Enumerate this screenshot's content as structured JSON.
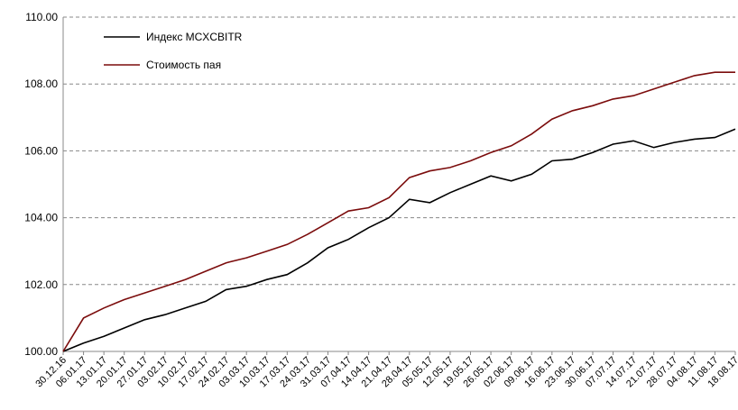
{
  "chart_data": {
    "type": "line",
    "categories": [
      "30.12.16",
      "06.01.17",
      "13.01.17",
      "20.01.17",
      "27.01.17",
      "03.02.17",
      "10.02.17",
      "17.02.17",
      "24.02.17",
      "03.03.17",
      "10.03.17",
      "17.03.17",
      "24.03.17",
      "31.03.17",
      "07.04.17",
      "14.04.17",
      "21.04.17",
      "28.04.17",
      "05.05.17",
      "12.05.17",
      "19.05.17",
      "26.05.17",
      "02.06.17",
      "09.06.17",
      "16.06.17",
      "23.06.17",
      "30.06.17",
      "07.07.17",
      "14.07.17",
      "21.07.17",
      "28.07.17",
      "04.08.17",
      "11.08.17",
      "18.08.17"
    ],
    "series": [
      {
        "name": "Индекс MCXCBITR",
        "color": "#000000",
        "values": [
          100.0,
          100.25,
          100.45,
          100.7,
          100.95,
          101.1,
          101.3,
          101.5,
          101.85,
          101.95,
          102.15,
          102.3,
          102.65,
          103.1,
          103.35,
          103.7,
          104.0,
          104.55,
          104.45,
          104.75,
          105.0,
          105.25,
          105.1,
          105.3,
          105.7,
          105.75,
          105.95,
          106.2,
          106.3,
          106.1,
          106.25,
          106.35,
          106.4,
          106.65
        ]
      },
      {
        "name": "Стоимость пая",
        "color": "#7b0c0c",
        "values": [
          100.0,
          101.0,
          101.3,
          101.55,
          101.75,
          101.95,
          102.15,
          102.4,
          102.65,
          102.8,
          103.0,
          103.2,
          103.5,
          103.85,
          104.2,
          104.3,
          104.6,
          105.2,
          105.4,
          105.5,
          105.7,
          105.95,
          106.15,
          106.5,
          106.95,
          107.2,
          107.35,
          107.55,
          107.65,
          107.85,
          108.05,
          108.25,
          108.35,
          108.35
        ]
      }
    ],
    "ylim": [
      100,
      110
    ],
    "yticks": [
      {
        "value": 100,
        "label": "100.00"
      },
      {
        "value": 102,
        "label": "102.00"
      },
      {
        "value": 104,
        "label": "104.00"
      },
      {
        "value": 106,
        "label": "106.00"
      },
      {
        "value": 108,
        "label": "108.00"
      },
      {
        "value": 110,
        "label": "110.00"
      }
    ],
    "grid": true,
    "legend": "upper left"
  }
}
